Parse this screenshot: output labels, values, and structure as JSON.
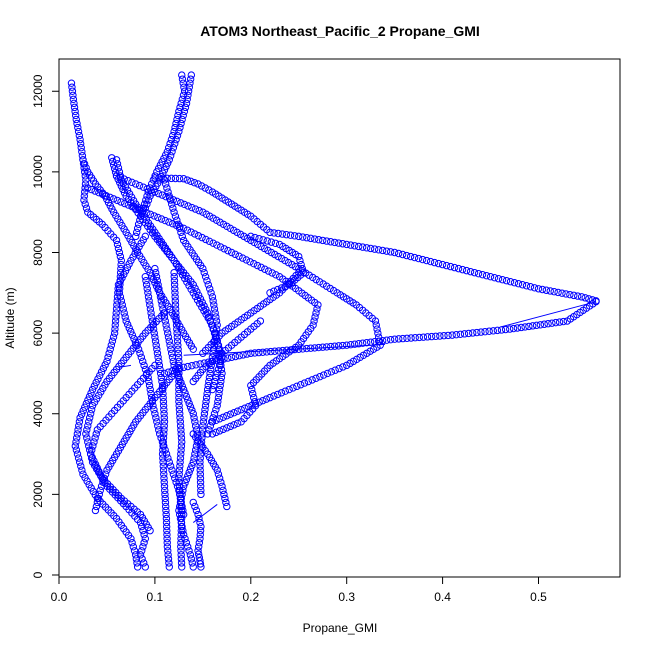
{
  "chart_data": {
    "type": "scatter",
    "title": "ATOM3 Northeast_Pacific_2 Propane_GMI",
    "xlabel": "Propane_GMI",
    "ylabel": "Altitude (m)",
    "xlim": [
      0.0,
      0.585
    ],
    "ylim": [
      -50,
      12800
    ],
    "x_ticks": [
      0.0,
      0.1,
      0.2,
      0.3,
      0.4,
      0.5
    ],
    "x_tick_labels": [
      "0.0",
      "0.1",
      "0.2",
      "0.3",
      "0.4",
      "0.5"
    ],
    "y_ticks": [
      0,
      2000,
      4000,
      6000,
      8000,
      10000,
      12000
    ],
    "y_tick_labels": [
      "0",
      "2000",
      "4000",
      "6000",
      "8000",
      "10000",
      "12000"
    ],
    "marker": "open-circle",
    "color": "#0000ff",
    "series": [
      {
        "x": [
          0.013,
          0.015,
          0.018,
          0.022,
          0.025,
          0.03,
          0.038,
          0.048,
          0.057,
          0.07,
          0.082,
          0.095,
          0.105,
          0.118,
          0.13,
          0.14
        ],
        "y": [
          12200,
          11800,
          11300,
          10800,
          10300,
          10000,
          9700,
          9400,
          9000,
          8500,
          8000,
          7500,
          7000,
          6500,
          6000,
          5600
        ]
      },
      {
        "x": [
          0.128,
          0.131,
          0.125,
          0.12,
          0.113,
          0.102,
          0.093,
          0.088,
          0.083,
          0.08
        ],
        "y": [
          12400,
          12000,
          11500,
          11000,
          10500,
          10000,
          9500,
          9100,
          8700,
          8400
        ]
      },
      {
        "x": [
          0.138,
          0.133,
          0.125,
          0.115,
          0.105,
          0.095,
          0.09
        ],
        "y": [
          12400,
          11700,
          11000,
          10300,
          9800,
          9400,
          9100
        ]
      },
      {
        "x": [
          0.1,
          0.13,
          0.145,
          0.16,
          0.18,
          0.2,
          0.22,
          0.25,
          0.3,
          0.35,
          0.4,
          0.45,
          0.5,
          0.545,
          0.56
        ],
        "y": [
          9850,
          9830,
          9700,
          9500,
          9200,
          8900,
          8500,
          8400,
          8200,
          8000,
          7700,
          7400,
          7100,
          6900,
          6800
        ]
      },
      {
        "x": [
          0.56,
          0.53,
          0.47,
          0.41,
          0.35,
          0.3,
          0.25,
          0.2,
          0.16,
          0.13,
          0.11
        ],
        "y": [
          6780,
          6300,
          6100,
          5950,
          5850,
          5700,
          5600,
          5500,
          5300,
          5150,
          5000
        ]
      },
      {
        "x": [
          0.06,
          0.1,
          0.15,
          0.2,
          0.25,
          0.29,
          0.31,
          0.33,
          0.335,
          0.3,
          0.26,
          0.22,
          0.19,
          0.16
        ],
        "y": [
          9900,
          9500,
          9000,
          8300,
          7600,
          7000,
          6700,
          6300,
          5700,
          5200,
          4800,
          4400,
          4100,
          3800
        ]
      },
      {
        "x": [
          0.03,
          0.08,
          0.13,
          0.18,
          0.23,
          0.27,
          0.265,
          0.25,
          0.22,
          0.2,
          0.205,
          0.19,
          0.16
        ],
        "y": [
          9600,
          9100,
          8600,
          8000,
          7400,
          6700,
          6200,
          5700,
          5200,
          4700,
          4200,
          3800,
          3500
        ]
      },
      {
        "x": [
          0.055,
          0.06,
          0.07,
          0.085,
          0.1,
          0.12,
          0.14,
          0.16,
          0.17,
          0.16
        ],
        "y": [
          10350,
          9900,
          9400,
          8900,
          8400,
          7800,
          7000,
          6200,
          5400,
          4600
        ]
      },
      {
        "x": [
          0.025,
          0.028,
          0.026,
          0.03,
          0.045,
          0.06,
          0.065,
          0.063,
          0.07,
          0.083,
          0.093,
          0.098,
          0.105,
          0.115,
          0.125,
          0.13
        ],
        "y": [
          10300,
          9800,
          9300,
          9000,
          8700,
          8300,
          7800,
          7000,
          6300,
          5600,
          4900,
          4200,
          3500,
          2800,
          2100,
          1500
        ]
      },
      {
        "x": [
          0.06,
          0.065,
          0.08,
          0.1,
          0.12,
          0.14,
          0.155,
          0.165,
          0.17,
          0.165,
          0.155
        ],
        "y": [
          10300,
          9800,
          9200,
          8500,
          7800,
          7200,
          6500,
          5800,
          5000,
          4200,
          3500
        ]
      },
      {
        "x": [
          0.09,
          0.075,
          0.062,
          0.06,
          0.058,
          0.05,
          0.035,
          0.022,
          0.017,
          0.025,
          0.04,
          0.06,
          0.075,
          0.08,
          0.082
        ],
        "y": [
          8400,
          7800,
          7200,
          6600,
          6000,
          5300,
          4600,
          3900,
          3200,
          2500,
          1900,
          1400,
          900,
          500,
          200
        ]
      },
      {
        "x": [
          0.11,
          0.09,
          0.07,
          0.05,
          0.035,
          0.028,
          0.035,
          0.05,
          0.07,
          0.085,
          0.09,
          0.085,
          0.09
        ],
        "y": [
          6500,
          6000,
          5400,
          4800,
          4200,
          3500,
          2800,
          2200,
          1700,
          1300,
          900,
          500,
          200
        ]
      },
      {
        "x": [
          0.1,
          0.085,
          0.07,
          0.055,
          0.04,
          0.033,
          0.045,
          0.065,
          0.085,
          0.095
        ],
        "y": [
          5200,
          4800,
          4400,
          4000,
          3600,
          3000,
          2400,
          1900,
          1500,
          1100
        ]
      },
      {
        "x": [
          0.12,
          0.11,
          0.1,
          0.09,
          0.08,
          0.07,
          0.06,
          0.05,
          0.043,
          0.038
        ],
        "y": [
          5000,
          4700,
          4400,
          4100,
          3800,
          3400,
          3000,
          2600,
          2100,
          1600
        ]
      },
      {
        "x": [
          0.09,
          0.096,
          0.102,
          0.108,
          0.11,
          0.108,
          0.11,
          0.112,
          0.113,
          0.115
        ],
        "y": [
          7400,
          6500,
          5600,
          4700,
          3800,
          3000,
          2200,
          1400,
          700,
          200
        ]
      },
      {
        "x": [
          0.12,
          0.122,
          0.125,
          0.125,
          0.128,
          0.125,
          0.128,
          0.127,
          0.128
        ],
        "y": [
          7500,
          6400,
          5300,
          4300,
          3300,
          2400,
          1500,
          700,
          200
        ]
      },
      {
        "x": [
          0.1,
          0.105,
          0.11,
          0.115,
          0.12,
          0.13,
          0.14,
          0.145,
          0.14,
          0.13,
          0.125,
          0.13,
          0.137,
          0.14
        ],
        "y": [
          7600,
          7000,
          6400,
          5800,
          5200,
          4600,
          4000,
          3400,
          2800,
          2200,
          1600,
          1000,
          500,
          200
        ]
      },
      {
        "x": [
          0.11,
          0.12,
          0.13,
          0.15,
          0.16,
          0.165,
          0.16,
          0.155,
          0.15,
          0.147,
          0.148
        ],
        "y": [
          9800,
          9000,
          8300,
          7600,
          6900,
          6200,
          5400,
          4600,
          3700,
          2800,
          2000
        ]
      },
      {
        "x": [
          0.14,
          0.145,
          0.148,
          0.147,
          0.145,
          0.147,
          0.148
        ],
        "y": [
          1800,
          1500,
          1200,
          900,
          600,
          350,
          200
        ]
      },
      {
        "x": [
          0.14,
          0.155,
          0.165,
          0.17,
          0.175
        ],
        "y": [
          3500,
          3000,
          2600,
          2200,
          1700
        ]
      },
      {
        "x": [
          0.25,
          0.23,
          0.2,
          0.17,
          0.15
        ],
        "y": [
          7500,
          7000,
          6500,
          6000,
          5500
        ]
      },
      {
        "x": [
          0.21,
          0.19,
          0.17,
          0.15,
          0.14
        ],
        "y": [
          6300,
          5900,
          5500,
          5100,
          4800
        ]
      },
      {
        "x": [
          0.2,
          0.23,
          0.25,
          0.255,
          0.24,
          0.22
        ],
        "y": [
          8400,
          8200,
          7900,
          7500,
          7200,
          7000
        ]
      }
    ],
    "lines": [
      {
        "x": [
          0.13,
          0.34
        ],
        "y": [
          5450,
          5720
        ]
      },
      {
        "x": [
          0.56,
          0.46
        ],
        "y": [
          6780,
          6150
        ]
      },
      {
        "x": [
          0.14,
          0.165
        ],
        "y": [
          1300,
          1750
        ]
      },
      {
        "x": [
          0.062,
          0.075
        ],
        "y": [
          5150,
          5200
        ]
      }
    ]
  }
}
